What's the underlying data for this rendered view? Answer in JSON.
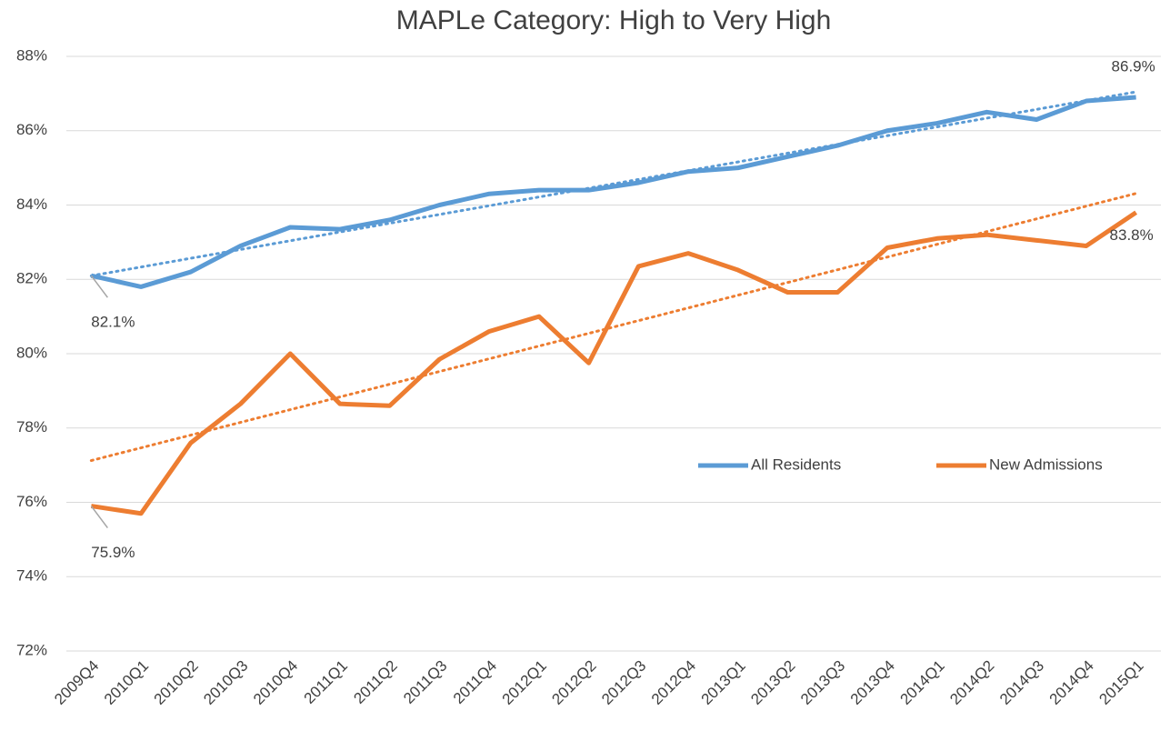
{
  "chart_data": {
    "type": "line",
    "title": "MAPLe Category: High to Very High",
    "categories": [
      "2009Q4",
      "2010Q1",
      "2010Q2",
      "2010Q3",
      "2010Q4",
      "2011Q1",
      "2011Q2",
      "2011Q3",
      "2011Q4",
      "2012Q1",
      "2012Q2",
      "2012Q3",
      "2012Q4",
      "2013Q1",
      "2013Q2",
      "2013Q3",
      "2013Q4",
      "2014Q1",
      "2014Q2",
      "2014Q3",
      "2014Q4",
      "2015Q1"
    ],
    "series": [
      {
        "name": "All Residents",
        "color": "#5b9bd5",
        "trendline": true,
        "values": [
          82.1,
          81.8,
          82.2,
          82.9,
          83.4,
          83.35,
          83.6,
          84.0,
          84.3,
          84.4,
          84.4,
          84.6,
          84.9,
          85.0,
          85.3,
          85.6,
          86.0,
          86.2,
          86.5,
          86.3,
          86.8,
          86.9
        ],
        "value_labels": [
          "82.1%",
          null,
          null,
          null,
          null,
          null,
          null,
          null,
          null,
          null,
          null,
          null,
          null,
          null,
          null,
          null,
          null,
          null,
          null,
          null,
          null,
          "86.9%"
        ]
      },
      {
        "name": "New Admissions",
        "color": "#ed7d31",
        "trendline": true,
        "values": [
          75.9,
          75.7,
          77.6,
          78.65,
          80.0,
          78.65,
          78.6,
          79.85,
          80.6,
          81.0,
          79.75,
          82.35,
          82.7,
          82.25,
          81.65,
          81.65,
          82.85,
          83.1,
          83.2,
          83.05,
          82.9,
          83.8
        ],
        "value_labels": [
          "75.9%",
          null,
          null,
          null,
          null,
          null,
          null,
          null,
          null,
          null,
          null,
          null,
          null,
          null,
          null,
          null,
          null,
          null,
          null,
          null,
          null,
          "83.8%"
        ]
      }
    ],
    "ylim": [
      72,
      88
    ],
    "yticks": [
      {
        "value": 72,
        "label": "72%"
      },
      {
        "value": 74,
        "label": "74%"
      },
      {
        "value": 76,
        "label": "76%"
      },
      {
        "value": 78,
        "label": "78%"
      },
      {
        "value": 80,
        "label": "80%"
      },
      {
        "value": 82,
        "label": "82%"
      },
      {
        "value": 84,
        "label": "84%"
      },
      {
        "value": 86,
        "label": "86%"
      },
      {
        "value": 88,
        "label": "88%"
      }
    ],
    "grid": true,
    "legend": "right"
  }
}
